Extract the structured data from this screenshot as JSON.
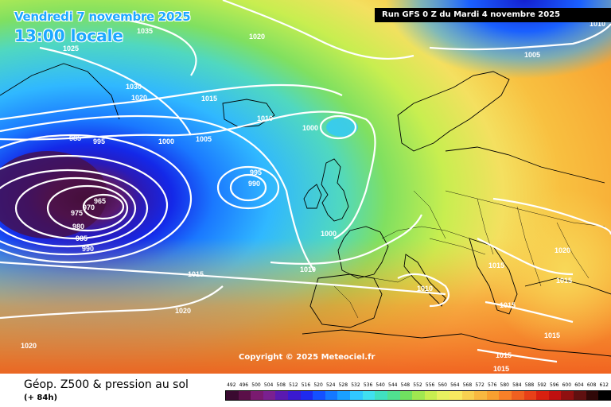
{
  "header": {
    "date_label": "Vendredi 7 novembre 2025",
    "time_label": "13:00 locale",
    "run_label": "Run GFS 0 Z du Mardi 4 novembre 2025"
  },
  "map": {
    "copyright": "Copyright © 2025 Meteociel.fr",
    "isobar_labels": [
      "1035",
      "1020",
      "1025",
      "1030",
      "1020",
      "1015",
      "1010",
      "1000",
      "985",
      "995",
      "1000",
      "1005",
      "965",
      "970",
      "975",
      "980",
      "985",
      "990",
      "995",
      "990",
      "1000",
      "1010",
      "1015",
      "1020",
      "1020",
      "1005",
      "1015",
      "1010",
      "1015",
      "1020",
      "1015",
      "1015",
      "1015",
      "1015",
      "1010"
    ],
    "colors": {
      "low_core": "#4a1030",
      "deep_blue": "#1a1acc",
      "sea_blue": "#3fb4ff",
      "green": "#7fe060",
      "yellow": "#f5e070",
      "orange": "#ff8030"
    }
  },
  "footer": {
    "title": "Géop. Z500 & pression au sol",
    "subtitle": "(+ 84h)",
    "scale_labels": [
      "492",
      "496",
      "500",
      "504",
      "508",
      "512",
      "516",
      "520",
      "524",
      "528",
      "532",
      "536",
      "540",
      "544",
      "548",
      "552",
      "556",
      "560",
      "564",
      "568",
      "572",
      "576",
      "580",
      "584",
      "588",
      "592",
      "596",
      "600",
      "604",
      "608",
      "612"
    ],
    "scale_colors": [
      "#3a0a30",
      "#5a0f48",
      "#7a1a70",
      "#7a2090",
      "#5a1ab0",
      "#3a1ad0",
      "#1e2aee",
      "#1450ff",
      "#1478ff",
      "#1aa0ff",
      "#30c8ff",
      "#40e0f0",
      "#40e0c0",
      "#50e090",
      "#70e060",
      "#a0e850",
      "#c8ee50",
      "#e8f060",
      "#f8e860",
      "#f8d050",
      "#f8b840",
      "#f8a030",
      "#f88028",
      "#f06020",
      "#e84018",
      "#d82010",
      "#c01010",
      "#901010",
      "#601010",
      "#300808",
      "#000000"
    ]
  }
}
